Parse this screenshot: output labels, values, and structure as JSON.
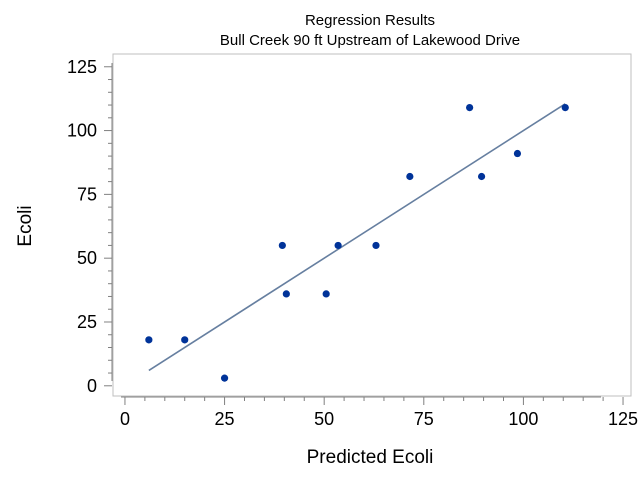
{
  "chart_data": {
    "type": "scatter",
    "title": "Regression Results",
    "subtitle": "Bull Creek 90 ft Upstream of Lakewood Drive",
    "xlabel": "Predicted Ecoli",
    "ylabel": "Ecoli",
    "xlim": [
      -3,
      127
    ],
    "ylim": [
      -4,
      130
    ],
    "xticks": [
      0,
      25,
      50,
      75,
      100,
      125
    ],
    "yticks": [
      0,
      25,
      50,
      75,
      100,
      125
    ],
    "grid": false,
    "legend": "none",
    "colors": {
      "points": "#003399",
      "fit_line": "#667fa0",
      "frame": "#bfbfbf",
      "axis": "#808080"
    },
    "points": [
      {
        "x": 6,
        "y": 18
      },
      {
        "x": 15,
        "y": 18
      },
      {
        "x": 25,
        "y": 3
      },
      {
        "x": 39.5,
        "y": 55
      },
      {
        "x": 40.5,
        "y": 36
      },
      {
        "x": 50.5,
        "y": 36
      },
      {
        "x": 53.5,
        "y": 55
      },
      {
        "x": 63,
        "y": 55
      },
      {
        "x": 71.5,
        "y": 82
      },
      {
        "x": 86.5,
        "y": 109
      },
      {
        "x": 89.5,
        "y": 82
      },
      {
        "x": 98.5,
        "y": 91
      },
      {
        "x": 110.5,
        "y": 109
      }
    ],
    "fit_line": [
      {
        "x": 6,
        "y": 6
      },
      {
        "x": 110.5,
        "y": 110.5
      }
    ]
  }
}
